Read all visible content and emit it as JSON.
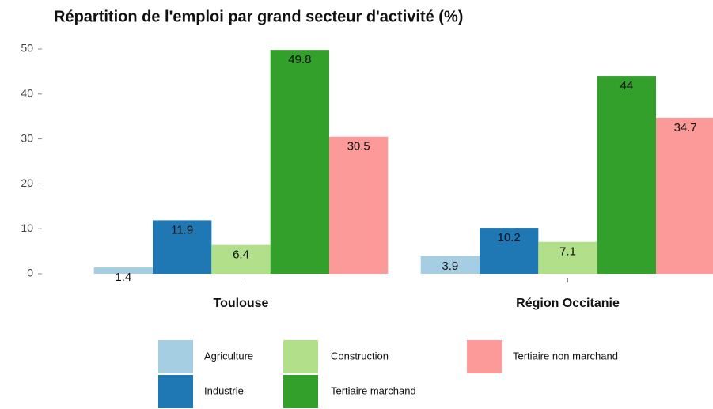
{
  "chart_data": {
    "type": "bar",
    "title": "Répartition de l'emploi par grand secteur d'activité (%)",
    "categories": [
      "Toulouse",
      "Région Occitanie"
    ],
    "series": [
      {
        "name": "Agriculture",
        "color": "#a6cee3",
        "values": [
          1.4,
          3.9
        ]
      },
      {
        "name": "Industrie",
        "color": "#1f78b4",
        "values": [
          11.9,
          10.2
        ]
      },
      {
        "name": "Construction",
        "color": "#b2df8a",
        "values": [
          6.4,
          7.1
        ]
      },
      {
        "name": "Tertiaire marchand",
        "color": "#33a02c",
        "values": [
          49.8,
          44
        ]
      },
      {
        "name": "Tertiaire non marchand",
        "color": "#fb9a99",
        "values": [
          30.5,
          34.7
        ]
      }
    ],
    "ylim": [
      0,
      50
    ],
    "yticks": [
      0,
      10,
      20,
      30,
      40,
      50
    ],
    "grid": false
  }
}
